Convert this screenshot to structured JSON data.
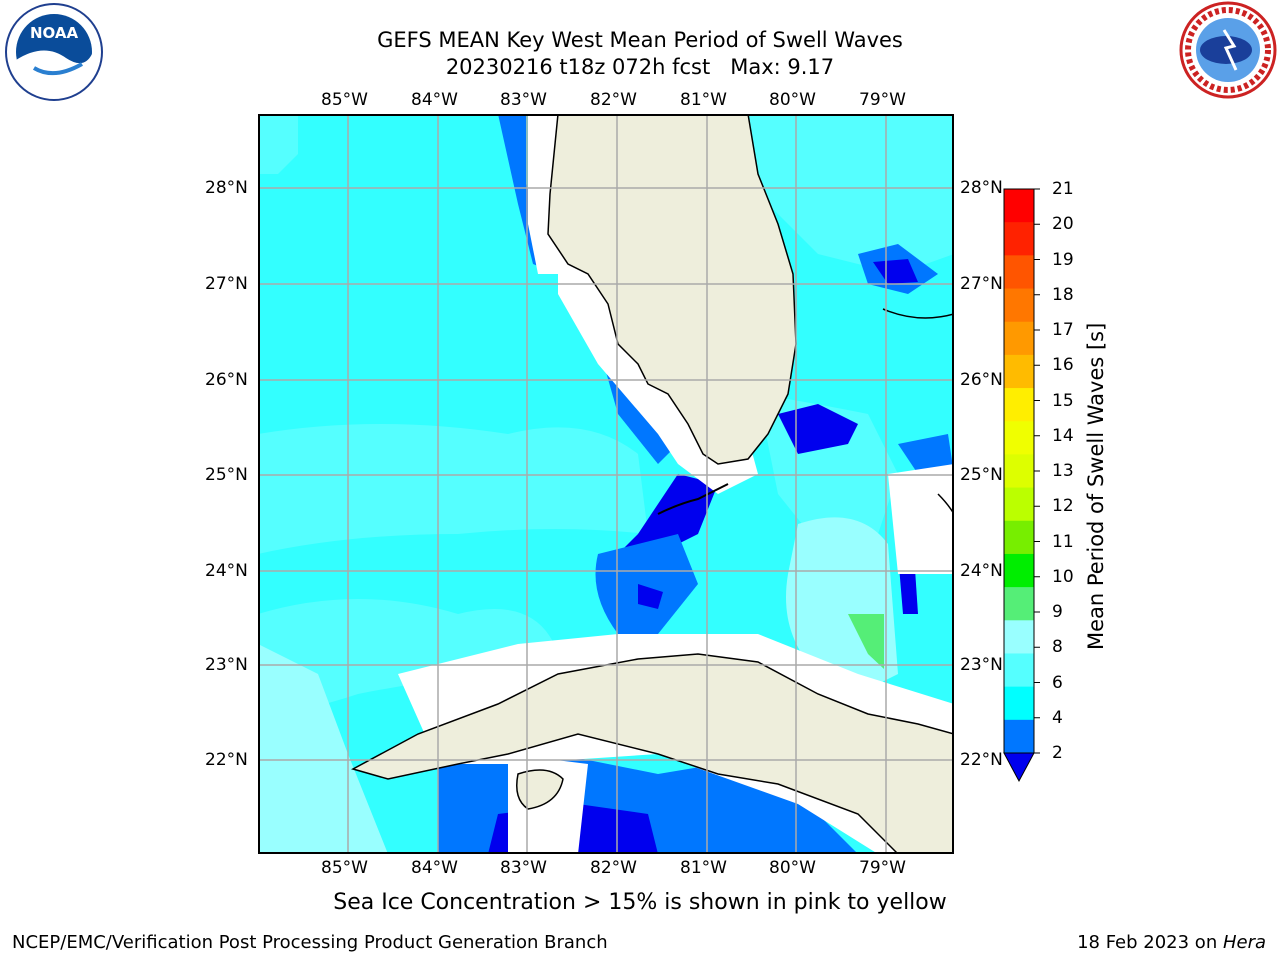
{
  "header": {
    "title_line1": "GEFS MEAN Key West Mean Period of Swell Waves",
    "title_line2": "20230216 t18z 072h fcst   Max: 9.17"
  },
  "logos": {
    "left": "NOAA",
    "right": "NATIONAL WEATHER SERVICE"
  },
  "map": {
    "lon_labels": [
      "85°W",
      "84°W",
      "83°W",
      "82°W",
      "81°W",
      "80°W",
      "79°W"
    ],
    "lat_labels": [
      "28°N",
      "27°N",
      "26°N",
      "25°N",
      "24°N",
      "23°N",
      "22°N"
    ],
    "colors": {
      "land": "#eeeedc",
      "ocean_base": "#33ffff",
      "missing": "#ffffff"
    }
  },
  "colorbar": {
    "label": "Mean Period of Swell Waves [s]",
    "ticks": [
      "21",
      "20",
      "19",
      "18",
      "17",
      "16",
      "15",
      "14",
      "13",
      "12",
      "11",
      "10",
      "9",
      "8",
      "6",
      "4",
      "2"
    ],
    "colors": [
      "#ff0000",
      "#ff2200",
      "#ff5500",
      "#ff7700",
      "#ff9900",
      "#ffbb00",
      "#ffee00",
      "#f0ff00",
      "#ddff00",
      "#bbff00",
      "#77ee00",
      "#00ee00",
      "#55ee77",
      "#99ffff",
      "#55ffff",
      "#00ffff",
      "#0077ff",
      "#0000ee"
    ]
  },
  "footer": {
    "note": "Sea Ice Concentration > 15% is shown in pink to yellow",
    "left": "NCEP/EMC/Verification Post Processing Product Generation Branch",
    "right_prefix": "18 Feb 2023 on ",
    "right_machine": "Hera"
  }
}
